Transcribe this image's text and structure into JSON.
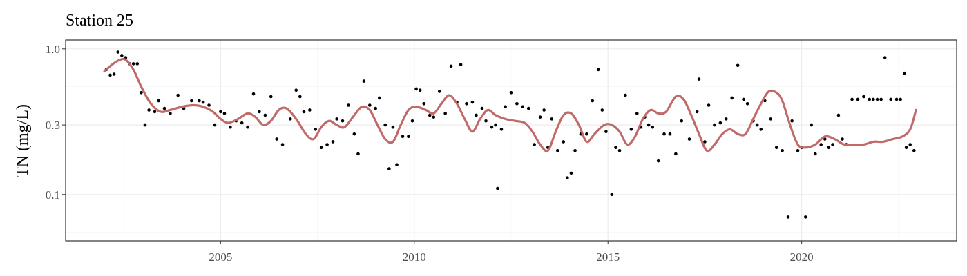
{
  "chart_data": {
    "type": "scatter",
    "title": "Station 25",
    "xlabel": "",
    "ylabel": "TN (mg/L)",
    "y_scale": "log",
    "xlim": [
      2001.0,
      2024.0
    ],
    "ylim": [
      0.048,
      1.15
    ],
    "grid": true,
    "x_ticks": [
      {
        "value": 2005,
        "label": "2005"
      },
      {
        "value": 2010,
        "label": "2010"
      },
      {
        "value": 2015,
        "label": "2015"
      },
      {
        "value": 2020,
        "label": "2020"
      }
    ],
    "y_ticks": [
      {
        "value": 1.0,
        "label": "1.0"
      },
      {
        "value": 0.3,
        "label": "0.3"
      },
      {
        "value": 0.1,
        "label": "0.1"
      }
    ],
    "y_minor_ticks": [
      0.55,
      0.17,
      0.055
    ],
    "colors": {
      "points": "#000000",
      "smooth": "#c06a6a"
    },
    "series": [
      {
        "kind": "points",
        "points": [
          [
            2002.05,
            0.72
          ],
          [
            2002.15,
            0.66
          ],
          [
            2002.25,
            0.67
          ],
          [
            2002.35,
            0.95
          ],
          [
            2002.45,
            0.9
          ],
          [
            2002.55,
            0.87
          ],
          [
            2002.65,
            0.79
          ],
          [
            2002.75,
            0.79
          ],
          [
            2002.85,
            0.79
          ],
          [
            2002.95,
            0.5
          ],
          [
            2003.05,
            0.3
          ],
          [
            2003.15,
            0.38
          ],
          [
            2003.3,
            0.37
          ],
          [
            2003.4,
            0.44
          ],
          [
            2003.55,
            0.39
          ],
          [
            2003.7,
            0.36
          ],
          [
            2003.9,
            0.48
          ],
          [
            2004.05,
            0.39
          ],
          [
            2004.25,
            0.44
          ],
          [
            2004.45,
            0.44
          ],
          [
            2004.55,
            0.43
          ],
          [
            2004.7,
            0.41
          ],
          [
            2004.85,
            0.3
          ],
          [
            2005.0,
            0.37
          ],
          [
            2005.1,
            0.36
          ],
          [
            2005.25,
            0.29
          ],
          [
            2005.4,
            0.32
          ],
          [
            2005.55,
            0.31
          ],
          [
            2005.7,
            0.29
          ],
          [
            2005.85,
            0.49
          ],
          [
            2006.0,
            0.37
          ],
          [
            2006.15,
            0.35
          ],
          [
            2006.3,
            0.47
          ],
          [
            2006.45,
            0.24
          ],
          [
            2006.6,
            0.22
          ],
          [
            2006.8,
            0.33
          ],
          [
            2006.95,
            0.52
          ],
          [
            2007.05,
            0.47
          ],
          [
            2007.15,
            0.37
          ],
          [
            2007.3,
            0.38
          ],
          [
            2007.45,
            0.28
          ],
          [
            2007.6,
            0.21
          ],
          [
            2007.75,
            0.22
          ],
          [
            2007.9,
            0.23
          ],
          [
            2008.0,
            0.33
          ],
          [
            2008.15,
            0.32
          ],
          [
            2008.3,
            0.41
          ],
          [
            2008.45,
            0.26
          ],
          [
            2008.55,
            0.19
          ],
          [
            2008.7,
            0.6
          ],
          [
            2008.85,
            0.41
          ],
          [
            2009.0,
            0.39
          ],
          [
            2009.1,
            0.46
          ],
          [
            2009.25,
            0.3
          ],
          [
            2009.35,
            0.15
          ],
          [
            2009.45,
            0.29
          ],
          [
            2009.55,
            0.16
          ],
          [
            2009.7,
            0.25
          ],
          [
            2009.85,
            0.25
          ],
          [
            2009.95,
            0.32
          ],
          [
            2010.05,
            0.53
          ],
          [
            2010.15,
            0.52
          ],
          [
            2010.25,
            0.42
          ],
          [
            2010.4,
            0.35
          ],
          [
            2010.5,
            0.34
          ],
          [
            2010.65,
            0.51
          ],
          [
            2010.8,
            0.36
          ],
          [
            2010.95,
            0.76
          ],
          [
            2011.1,
            0.43
          ],
          [
            2011.2,
            0.78
          ],
          [
            2011.35,
            0.42
          ],
          [
            2011.5,
            0.43
          ],
          [
            2011.6,
            0.35
          ],
          [
            2011.75,
            0.39
          ],
          [
            2011.85,
            0.32
          ],
          [
            2012.0,
            0.29
          ],
          [
            2012.1,
            0.3
          ],
          [
            2012.15,
            0.11
          ],
          [
            2012.25,
            0.28
          ],
          [
            2012.35,
            0.4
          ],
          [
            2012.5,
            0.5
          ],
          [
            2012.65,
            0.42
          ],
          [
            2012.8,
            0.4
          ],
          [
            2012.95,
            0.39
          ],
          [
            2013.1,
            0.22
          ],
          [
            2013.25,
            0.34
          ],
          [
            2013.35,
            0.38
          ],
          [
            2013.45,
            0.21
          ],
          [
            2013.55,
            0.33
          ],
          [
            2013.7,
            0.2
          ],
          [
            2013.85,
            0.23
          ],
          [
            2013.95,
            0.13
          ],
          [
            2014.05,
            0.14
          ],
          [
            2014.15,
            0.2
          ],
          [
            2014.3,
            0.26
          ],
          [
            2014.45,
            0.26
          ],
          [
            2014.6,
            0.44
          ],
          [
            2014.75,
            0.72
          ],
          [
            2014.85,
            0.38
          ],
          [
            2014.95,
            0.27
          ],
          [
            2015.1,
            0.1
          ],
          [
            2015.2,
            0.21
          ],
          [
            2015.3,
            0.2
          ],
          [
            2015.45,
            0.48
          ],
          [
            2015.6,
            0.28
          ],
          [
            2015.75,
            0.36
          ],
          [
            2015.85,
            0.29
          ],
          [
            2015.95,
            0.34
          ],
          [
            2016.05,
            0.3
          ],
          [
            2016.15,
            0.29
          ],
          [
            2016.3,
            0.17
          ],
          [
            2016.45,
            0.26
          ],
          [
            2016.6,
            0.26
          ],
          [
            2016.75,
            0.19
          ],
          [
            2016.9,
            0.32
          ],
          [
            2017.1,
            0.24
          ],
          [
            2017.3,
            0.37
          ],
          [
            2017.35,
            0.62
          ],
          [
            2017.5,
            0.23
          ],
          [
            2017.6,
            0.41
          ],
          [
            2017.75,
            0.3
          ],
          [
            2017.9,
            0.31
          ],
          [
            2018.05,
            0.33
          ],
          [
            2018.2,
            0.46
          ],
          [
            2018.35,
            0.77
          ],
          [
            2018.5,
            0.45
          ],
          [
            2018.6,
            0.42
          ],
          [
            2018.75,
            0.32
          ],
          [
            2018.85,
            0.3
          ],
          [
            2018.95,
            0.28
          ],
          [
            2019.05,
            0.44
          ],
          [
            2019.2,
            0.33
          ],
          [
            2019.35,
            0.21
          ],
          [
            2019.5,
            0.2
          ],
          [
            2019.65,
            0.07
          ],
          [
            2019.75,
            0.32
          ],
          [
            2019.9,
            0.2
          ],
          [
            2020.0,
            0.21
          ],
          [
            2020.1,
            0.07
          ],
          [
            2020.25,
            0.3
          ],
          [
            2020.35,
            0.19
          ],
          [
            2020.5,
            0.22
          ],
          [
            2020.6,
            0.24
          ],
          [
            2020.7,
            0.21
          ],
          [
            2020.8,
            0.22
          ],
          [
            2020.95,
            0.35
          ],
          [
            2021.05,
            0.24
          ],
          [
            2021.15,
            0.22
          ],
          [
            2021.3,
            0.45
          ],
          [
            2021.45,
            0.45
          ],
          [
            2021.6,
            0.47
          ],
          [
            2021.75,
            0.45
          ],
          [
            2021.85,
            0.45
          ],
          [
            2021.95,
            0.45
          ],
          [
            2022.05,
            0.45
          ],
          [
            2022.15,
            0.87
          ],
          [
            2022.3,
            0.45
          ],
          [
            2022.45,
            0.45
          ],
          [
            2022.55,
            0.45
          ],
          [
            2022.65,
            0.68
          ],
          [
            2022.7,
            0.21
          ],
          [
            2022.8,
            0.22
          ],
          [
            2022.9,
            0.2
          ]
        ]
      },
      {
        "kind": "smooth",
        "points": [
          [
            2002.0,
            0.7
          ],
          [
            2002.2,
            0.78
          ],
          [
            2002.4,
            0.84
          ],
          [
            2002.55,
            0.84
          ],
          [
            2002.75,
            0.72
          ],
          [
            2002.95,
            0.55
          ],
          [
            2003.2,
            0.42
          ],
          [
            2003.45,
            0.37
          ],
          [
            2003.7,
            0.38
          ],
          [
            2004.0,
            0.4
          ],
          [
            2004.3,
            0.41
          ],
          [
            2004.55,
            0.4
          ],
          [
            2004.8,
            0.37
          ],
          [
            2005.0,
            0.33
          ],
          [
            2005.2,
            0.31
          ],
          [
            2005.45,
            0.33
          ],
          [
            2005.7,
            0.36
          ],
          [
            2005.9,
            0.34
          ],
          [
            2006.1,
            0.3
          ],
          [
            2006.3,
            0.32
          ],
          [
            2006.5,
            0.38
          ],
          [
            2006.7,
            0.39
          ],
          [
            2006.95,
            0.33
          ],
          [
            2007.2,
            0.26
          ],
          [
            2007.4,
            0.24
          ],
          [
            2007.6,
            0.29
          ],
          [
            2007.8,
            0.32
          ],
          [
            2008.0,
            0.3
          ],
          [
            2008.2,
            0.29
          ],
          [
            2008.45,
            0.35
          ],
          [
            2008.65,
            0.4
          ],
          [
            2008.85,
            0.38
          ],
          [
            2009.05,
            0.3
          ],
          [
            2009.25,
            0.24
          ],
          [
            2009.45,
            0.23
          ],
          [
            2009.65,
            0.3
          ],
          [
            2009.85,
            0.38
          ],
          [
            2010.05,
            0.4
          ],
          [
            2010.3,
            0.38
          ],
          [
            2010.5,
            0.36
          ],
          [
            2010.7,
            0.42
          ],
          [
            2010.9,
            0.48
          ],
          [
            2011.1,
            0.42
          ],
          [
            2011.3,
            0.33
          ],
          [
            2011.5,
            0.27
          ],
          [
            2011.7,
            0.33
          ],
          [
            2011.9,
            0.38
          ],
          [
            2012.1,
            0.35
          ],
          [
            2012.35,
            0.33
          ],
          [
            2012.6,
            0.32
          ],
          [
            2012.85,
            0.31
          ],
          [
            2013.05,
            0.27
          ],
          [
            2013.25,
            0.22
          ],
          [
            2013.45,
            0.2
          ],
          [
            2013.65,
            0.27
          ],
          [
            2013.85,
            0.35
          ],
          [
            2014.05,
            0.36
          ],
          [
            2014.25,
            0.3
          ],
          [
            2014.45,
            0.23
          ],
          [
            2014.65,
            0.26
          ],
          [
            2014.9,
            0.3
          ],
          [
            2015.1,
            0.3
          ],
          [
            2015.3,
            0.27
          ],
          [
            2015.5,
            0.22
          ],
          [
            2015.7,
            0.25
          ],
          [
            2015.9,
            0.33
          ],
          [
            2016.1,
            0.38
          ],
          [
            2016.3,
            0.36
          ],
          [
            2016.5,
            0.37
          ],
          [
            2016.75,
            0.47
          ],
          [
            2016.95,
            0.45
          ],
          [
            2017.15,
            0.35
          ],
          [
            2017.35,
            0.26
          ],
          [
            2017.55,
            0.2
          ],
          [
            2017.75,
            0.22
          ],
          [
            2017.95,
            0.26
          ],
          [
            2018.15,
            0.28
          ],
          [
            2018.35,
            0.26
          ],
          [
            2018.55,
            0.26
          ],
          [
            2018.75,
            0.33
          ],
          [
            2018.95,
            0.42
          ],
          [
            2019.15,
            0.51
          ],
          [
            2019.35,
            0.5
          ],
          [
            2019.5,
            0.44
          ],
          [
            2019.7,
            0.3
          ],
          [
            2019.9,
            0.22
          ],
          [
            2020.1,
            0.21
          ],
          [
            2020.35,
            0.22
          ],
          [
            2020.6,
            0.25
          ],
          [
            2020.85,
            0.24
          ],
          [
            2021.1,
            0.22
          ],
          [
            2021.35,
            0.22
          ],
          [
            2021.6,
            0.22
          ],
          [
            2021.85,
            0.23
          ],
          [
            2022.1,
            0.23
          ],
          [
            2022.35,
            0.24
          ],
          [
            2022.6,
            0.25
          ],
          [
            2022.8,
            0.28
          ],
          [
            2022.95,
            0.38
          ]
        ]
      }
    ]
  }
}
